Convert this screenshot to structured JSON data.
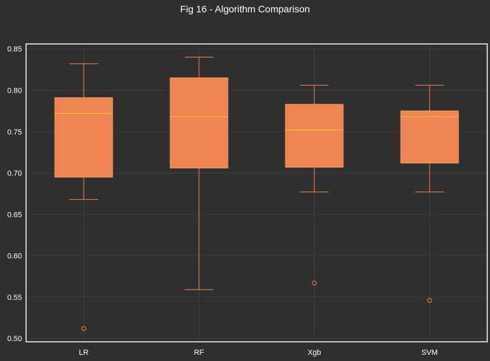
{
  "chart_data": {
    "type": "box",
    "title": "Fig 16 - Algorithm Comparison",
    "xlabel": "",
    "ylabel": "",
    "categories": [
      "LR",
      "RF",
      "Xgb",
      "SVM"
    ],
    "ylim": [
      0.496,
      0.856
    ],
    "yticks": [
      "0.50",
      "0.55",
      "0.60",
      "0.65",
      "0.70",
      "0.75",
      "0.80",
      "0.85"
    ],
    "grid": true,
    "boxes": [
      {
        "name": "LR",
        "whisker_low": 0.668,
        "q1": 0.695,
        "median": 0.772,
        "q3": 0.791,
        "whisker_high": 0.832,
        "outliers": [
          0.512
        ]
      },
      {
        "name": "RF",
        "whisker_low": 0.559,
        "q1": 0.706,
        "median": 0.768,
        "q3": 0.815,
        "whisker_high": 0.84,
        "outliers": []
      },
      {
        "name": "Xgb",
        "whisker_low": 0.677,
        "q1": 0.707,
        "median": 0.752,
        "q3": 0.783,
        "whisker_high": 0.806,
        "outliers": [
          0.567
        ]
      },
      {
        "name": "SVM",
        "whisker_low": 0.677,
        "q1": 0.712,
        "median": 0.768,
        "q3": 0.775,
        "whisker_high": 0.806,
        "outliers": [
          0.546
        ]
      }
    ],
    "colors": {
      "background": "#2f2f2f",
      "box_fill": "#f08454",
      "box_edge": "#f5a060",
      "whisker": "#f08454",
      "median": "#f5c23c",
      "grid": "#3d3d3d",
      "frame": "#ffffff",
      "text": "#ffffff"
    }
  }
}
